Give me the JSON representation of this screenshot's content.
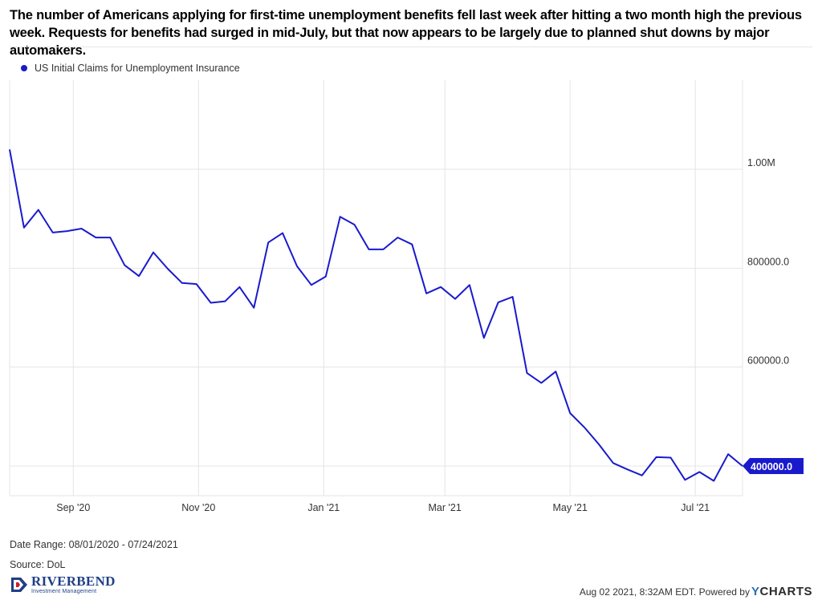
{
  "headline": "The number of Americans applying for first-time unemployment benefits fell last week after hitting a two month high the previous week. Requests for benefits had surged in mid-July, but that now appears to be largely due to planned shut downs by major automakers.",
  "legend": {
    "label": "US Initial Claims for Unemployment Insurance",
    "color": "#1a1acd"
  },
  "footer": {
    "date_range": "Date Range: 08/01/2020 - 07/24/2021",
    "source": "Source: DoL",
    "logo_name": "RIVERBEND",
    "logo_sub": "Investment Management",
    "attribution": "Aug 02 2021, 8:32AM EDT. Powered by",
    "ycharts_y": "Y",
    "ycharts_rest": "CHARTS"
  },
  "chart_data": {
    "type": "line",
    "series": [
      {
        "name": "US Initial Claims for Unemployment Insurance",
        "color": "#1a1acd",
        "x": [
          "2020-08-01",
          "2020-08-08",
          "2020-08-15",
          "2020-08-22",
          "2020-08-29",
          "2020-09-05",
          "2020-09-12",
          "2020-09-19",
          "2020-09-26",
          "2020-10-03",
          "2020-10-10",
          "2020-10-17",
          "2020-10-24",
          "2020-10-31",
          "2020-11-07",
          "2020-11-14",
          "2020-11-21",
          "2020-11-28",
          "2020-12-05",
          "2020-12-12",
          "2020-12-19",
          "2020-12-26",
          "2021-01-02",
          "2021-01-09",
          "2021-01-16",
          "2021-01-23",
          "2021-01-30",
          "2021-02-06",
          "2021-02-13",
          "2021-02-20",
          "2021-02-27",
          "2021-03-06",
          "2021-03-13",
          "2021-03-20",
          "2021-03-27",
          "2021-04-03",
          "2021-04-10",
          "2021-04-17",
          "2021-04-24",
          "2021-05-01",
          "2021-05-08",
          "2021-05-15",
          "2021-05-22",
          "2021-05-29",
          "2021-06-05",
          "2021-06-12",
          "2021-06-19",
          "2021-06-26",
          "2021-07-03",
          "2021-07-10",
          "2021-07-17",
          "2021-07-24"
        ],
        "values": [
          1040000,
          882000,
          918000,
          872000,
          875000,
          880000,
          862000,
          862000,
          806000,
          784000,
          832000,
          799000,
          770000,
          768000,
          730000,
          733000,
          762000,
          720000,
          852000,
          871000,
          804000,
          766000,
          783000,
          904000,
          888000,
          838000,
          838000,
          862000,
          848000,
          749000,
          762000,
          738000,
          766000,
          659000,
          731000,
          742000,
          588000,
          568000,
          591000,
          507000,
          478000,
          444000,
          406000,
          393000,
          381000,
          418000,
          417000,
          372000,
          388000,
          370000,
          424000,
          400000
        ]
      }
    ],
    "y_ticks": [
      "1.00M",
      "800000.0",
      "600000.0"
    ],
    "y_tick_values": [
      1000000,
      800000,
      600000
    ],
    "x_ticks": [
      "Sep '20",
      "Nov '20",
      "Jan '21",
      "Mar '21",
      "May '21",
      "Jul '21"
    ],
    "x_tick_dates": [
      "2020-09-01",
      "2020-11-01",
      "2021-01-01",
      "2021-03-01",
      "2021-05-01",
      "2021-07-01"
    ],
    "extra_gridline_value": 400000,
    "last_value_label": "400000.0",
    "ylim": [
      340000,
      1180000
    ],
    "xlim": [
      "2020-08-01",
      "2021-07-24"
    ],
    "grid": true,
    "legend_position": "top-left"
  }
}
